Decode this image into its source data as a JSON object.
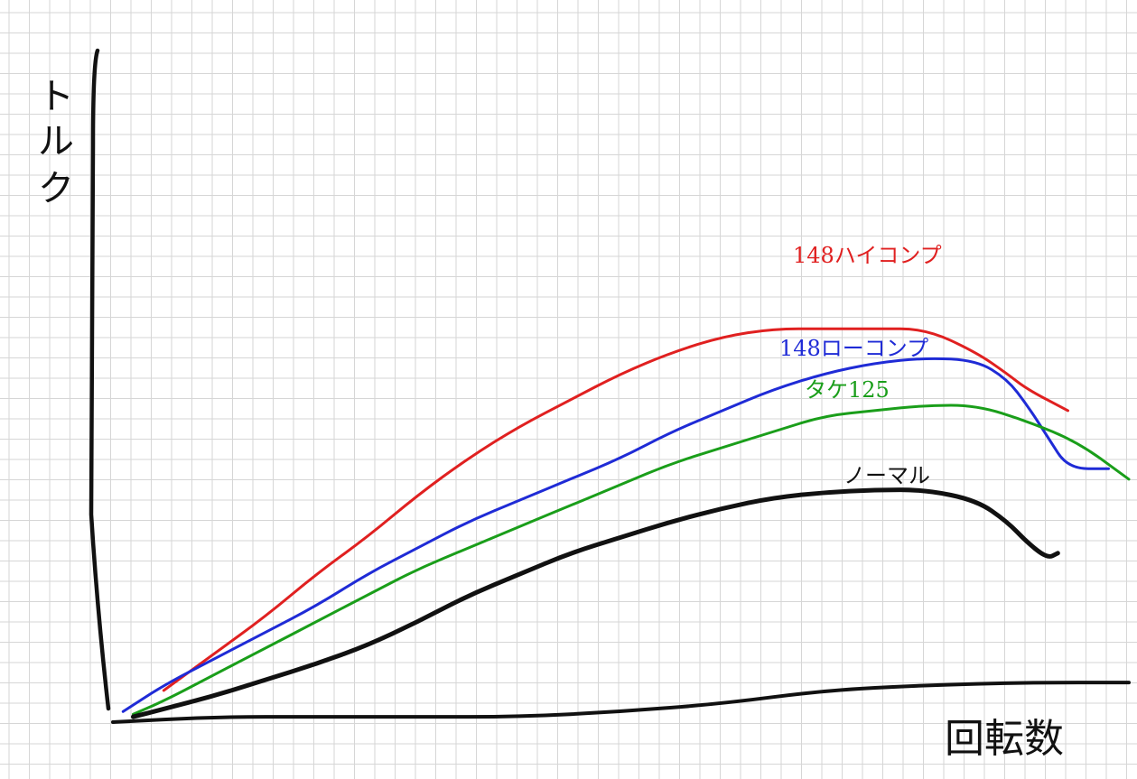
{
  "chart_data": {
    "type": "line",
    "style": "hand-drawn sketch on grid paper, no numeric axes",
    "ylabel": "トルク",
    "xlabel": "回転数",
    "grid": true,
    "axis_units": "arbitrary (unlabeled)",
    "x_range": [
      0,
      100
    ],
    "y_range": [
      0,
      100
    ],
    "series": [
      {
        "name": "148ハイコンプ",
        "color": "#e02020",
        "x": [
          5,
          10,
          15,
          20,
          25,
          30,
          35,
          40,
          45,
          50,
          55,
          60,
          65,
          70,
          75,
          80,
          85,
          88,
          90,
          94
        ],
        "y": [
          6,
          13,
          20,
          28,
          35,
          43,
          50,
          56,
          61,
          66,
          70,
          73,
          74.5,
          74.5,
          74.5,
          74.5,
          70,
          66,
          63,
          59
        ]
      },
      {
        "name": "148ローコンプ",
        "color": "#1f2bd6",
        "x": [
          1,
          5,
          10,
          15,
          20,
          25,
          30,
          35,
          40,
          45,
          50,
          55,
          60,
          65,
          70,
          75,
          80,
          85,
          88,
          90,
          92,
          94,
          98
        ],
        "y": [
          2,
          7,
          12,
          17,
          22,
          28,
          33,
          38,
          42,
          46,
          50,
          55,
          59,
          63,
          66,
          68,
          69,
          68.5,
          65,
          60,
          54,
          48,
          48
        ]
      },
      {
        "name": "タケ125",
        "color": "#1a9e1a",
        "x": [
          2,
          5,
          10,
          15,
          20,
          25,
          30,
          35,
          40,
          45,
          50,
          55,
          60,
          65,
          70,
          75,
          80,
          85,
          90,
          95,
          100
        ],
        "y": [
          1.5,
          4,
          9,
          14,
          19,
          24,
          29,
          33,
          37,
          41,
          45,
          49,
          52,
          55,
          58,
          59,
          60,
          60,
          57,
          53,
          46
        ]
      },
      {
        "name": "ノーマル",
        "color": "#111111",
        "x": [
          2,
          5,
          10,
          15,
          20,
          25,
          30,
          35,
          40,
          45,
          50,
          55,
          60,
          65,
          70,
          75,
          80,
          85,
          88,
          90,
          92,
          93
        ],
        "y": [
          1,
          2.5,
          5,
          8,
          11,
          14.5,
          19,
          24,
          28,
          32,
          35,
          38,
          40.5,
          42.5,
          43.5,
          44,
          44,
          42,
          38,
          34,
          31,
          32
        ]
      },
      {
        "name": "",
        "color": "#111111",
        "x": [
          0,
          10,
          20,
          30,
          40,
          50,
          60,
          70,
          80,
          90,
          100
        ],
        "y": [
          0,
          1,
          1,
          1,
          1,
          2,
          3.5,
          6,
          7,
          7.5,
          7.5
        ]
      }
    ]
  }
}
